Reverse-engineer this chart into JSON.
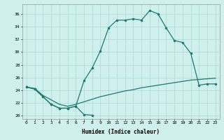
{
  "xlabel": "Humidex (Indice chaleur)",
  "background_color": "#cff0ec",
  "grid_color": "#aad8d3",
  "line_color": "#1e7a70",
  "xlim": [
    -0.5,
    23.5
  ],
  "ylim": [
    19.5,
    37.5
  ],
  "xticks": [
    0,
    1,
    2,
    3,
    4,
    5,
    6,
    7,
    8,
    9,
    10,
    11,
    12,
    13,
    14,
    15,
    16,
    17,
    18,
    19,
    20,
    21,
    22,
    23
  ],
  "yticks": [
    20,
    22,
    24,
    26,
    28,
    30,
    32,
    34,
    36
  ],
  "s1x": [
    0,
    1,
    2,
    3,
    4,
    5,
    6,
    7,
    8
  ],
  "s1y": [
    24.5,
    24.2,
    23.0,
    21.8,
    21.2,
    21.2,
    21.5,
    20.2,
    20.1
  ],
  "s2x": [
    0,
    1,
    2,
    3,
    4,
    5,
    6,
    7,
    8,
    9,
    10,
    11,
    12,
    13,
    14,
    15,
    16,
    17,
    18,
    19,
    20,
    21,
    22,
    23
  ],
  "s2y": [
    24.5,
    24.3,
    23.2,
    22.5,
    21.8,
    21.5,
    21.8,
    22.2,
    22.6,
    23.0,
    23.3,
    23.6,
    23.9,
    24.1,
    24.4,
    24.6,
    24.8,
    25.0,
    25.2,
    25.4,
    25.6,
    25.7,
    25.8,
    25.9
  ],
  "s3x": [
    0,
    1,
    2,
    3,
    4,
    5,
    6,
    7,
    8,
    9,
    10,
    11,
    12,
    13,
    14,
    15,
    16,
    17,
    18,
    19,
    20,
    21,
    22,
    23
  ],
  "s3y": [
    24.5,
    24.2,
    23.0,
    21.8,
    21.2,
    21.2,
    21.5,
    25.5,
    27.5,
    30.2,
    33.8,
    35.0,
    35.0,
    35.2,
    35.0,
    36.5,
    36.0,
    33.8,
    31.8,
    31.5,
    29.8,
    24.8,
    25.0,
    25.0
  ]
}
